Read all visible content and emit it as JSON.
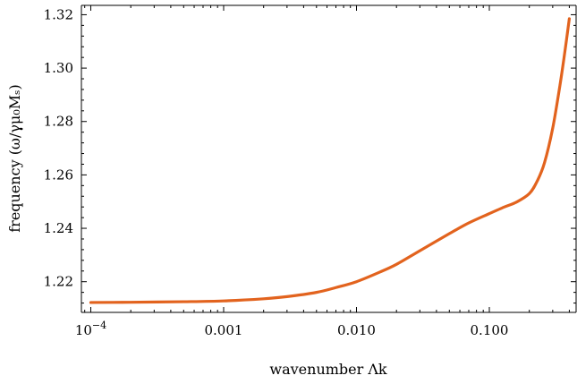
{
  "chart_data": {
    "type": "line",
    "xscale": "log",
    "xlim": [
      8.5e-05,
      0.45
    ],
    "ylim": [
      1.2085,
      1.3235
    ],
    "xlabel": "wavenumber Λk",
    "ylabel": "frequency (ω/γμ₀Mₛ)",
    "x_ticks": [
      {
        "value": 0.0001,
        "label": "10",
        "sup": "−4"
      },
      {
        "value": 0.001,
        "label": "0.001",
        "sup": ""
      },
      {
        "value": 0.01,
        "label": "0.010",
        "sup": ""
      },
      {
        "value": 0.1,
        "label": "0.100",
        "sup": ""
      }
    ],
    "y_ticks": [
      {
        "value": 1.22,
        "label": "1.22"
      },
      {
        "value": 1.24,
        "label": "1.24"
      },
      {
        "value": 1.26,
        "label": "1.26"
      },
      {
        "value": 1.28,
        "label": "1.28"
      },
      {
        "value": 1.3,
        "label": "1.30"
      },
      {
        "value": 1.32,
        "label": "1.32"
      }
    ],
    "grid": false,
    "series": [
      {
        "color": "#e2631e",
        "x": [
          0.0001,
          0.0002,
          0.0005,
          0.001,
          0.002,
          0.003,
          0.005,
          0.007,
          0.01,
          0.015,
          0.02,
          0.03,
          0.05,
          0.07,
          0.1,
          0.13,
          0.16,
          0.2,
          0.23,
          0.26,
          0.3,
          0.34,
          0.37,
          0.4
        ],
        "y": [
          1.2122,
          1.2123,
          1.2125,
          1.2128,
          1.2136,
          1.2144,
          1.216,
          1.2178,
          1.22,
          1.2236,
          1.2265,
          1.2316,
          1.238,
          1.242,
          1.2455,
          1.248,
          1.2498,
          1.253,
          1.2578,
          1.2645,
          1.2775,
          1.2935,
          1.306,
          1.3185
        ]
      }
    ]
  }
}
